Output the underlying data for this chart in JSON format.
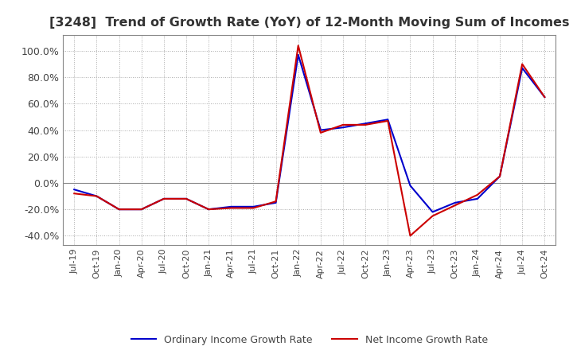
{
  "title": "[3248]  Trend of Growth Rate (YoY) of 12-Month Moving Sum of Incomes",
  "title_fontsize": 11.5,
  "ylim": [
    -0.47,
    1.12
  ],
  "yticks": [
    -0.4,
    -0.2,
    0.0,
    0.2,
    0.4,
    0.6,
    0.8,
    1.0
  ],
  "legend_labels": [
    "Ordinary Income Growth Rate",
    "Net Income Growth Rate"
  ],
  "line_colors": [
    "#0000CC",
    "#CC0000"
  ],
  "background_color": "#ffffff",
  "grid_color": "#aaaaaa",
  "dates": [
    "Jul-19",
    "Oct-19",
    "Jan-20",
    "Apr-20",
    "Jul-20",
    "Oct-20",
    "Jan-21",
    "Apr-21",
    "Jul-21",
    "Oct-21",
    "Jan-22",
    "Apr-22",
    "Jul-22",
    "Oct-22",
    "Jan-23",
    "Apr-23",
    "Jul-23",
    "Oct-23",
    "Jan-24",
    "Apr-24",
    "Jul-24",
    "Oct-24"
  ],
  "ordinary_income": [
    -0.05,
    -0.1,
    -0.2,
    -0.2,
    -0.12,
    -0.12,
    -0.2,
    -0.18,
    -0.18,
    -0.15,
    0.97,
    0.4,
    0.42,
    0.45,
    0.48,
    -0.02,
    -0.22,
    -0.15,
    -0.12,
    0.05,
    0.87,
    0.65
  ],
  "net_income": [
    -0.08,
    -0.1,
    -0.2,
    -0.2,
    -0.12,
    -0.12,
    -0.2,
    -0.19,
    -0.19,
    -0.14,
    1.04,
    0.38,
    0.44,
    0.44,
    0.47,
    -0.4,
    -0.25,
    -0.17,
    -0.09,
    0.05,
    0.9,
    0.65
  ]
}
